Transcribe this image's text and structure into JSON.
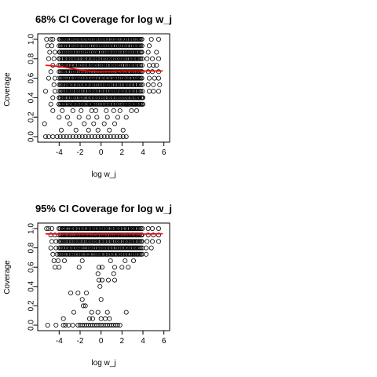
{
  "chart_data": [
    {
      "type": "scatter",
      "title": "68% CI Coverage for log w_j",
      "xlabel": "log w_j",
      "ylabel": "Coverage",
      "xlim": [
        -5.6,
        6.1
      ],
      "ylim": [
        0.0,
        1.0
      ],
      "xticks": [
        -4,
        -2,
        0,
        2,
        4,
        6
      ],
      "yticks": [
        0.0,
        0.2,
        0.4,
        0.6,
        0.8,
        1.0
      ],
      "xtick_labels": [
        "-4",
        "-2",
        "0",
        "2",
        "4",
        "6"
      ],
      "ytick_labels": [
        "0.0",
        "0.2",
        "0.4",
        "0.6",
        "0.8",
        "1.0"
      ],
      "grid": false,
      "point_style": "open-circle",
      "coverage_levels": [
        1.0,
        0.933,
        0.867,
        0.8,
        0.733,
        0.667,
        0.6,
        0.533,
        0.467,
        0.4,
        0.333,
        0.267,
        0.2,
        0.133,
        0.067,
        0.0
      ],
      "dense_band": {
        "y_min": 0.333,
        "y_max": 1.0,
        "x_min": -4.0,
        "x_max": 4.0
      },
      "points": [
        [
          -5.2,
          1.0
        ],
        [
          -4.8,
          1.0
        ],
        [
          -4.6,
          1.0
        ],
        [
          4.8,
          1.0
        ],
        [
          5.5,
          1.0
        ],
        [
          -5.1,
          0.933
        ],
        [
          -4.7,
          0.933
        ],
        [
          4.6,
          0.933
        ],
        [
          -4.9,
          0.867
        ],
        [
          -4.4,
          0.867
        ],
        [
          4.5,
          0.867
        ],
        [
          5.3,
          0.867
        ],
        [
          -5.0,
          0.8
        ],
        [
          -4.5,
          0.8
        ],
        [
          4.4,
          0.8
        ],
        [
          4.9,
          0.8
        ],
        [
          5.5,
          0.8
        ],
        [
          -4.6,
          0.733
        ],
        [
          4.6,
          0.733
        ],
        [
          5.0,
          0.733
        ],
        [
          5.3,
          0.733
        ],
        [
          -4.8,
          0.667
        ],
        [
          4.5,
          0.667
        ],
        [
          4.9,
          0.667
        ],
        [
          5.5,
          0.667
        ],
        [
          -5.0,
          0.6
        ],
        [
          -4.4,
          0.6
        ],
        [
          4.6,
          0.6
        ],
        [
          5.1,
          0.6
        ],
        [
          5.5,
          0.6
        ],
        [
          -4.5,
          0.533
        ],
        [
          4.5,
          0.533
        ],
        [
          5.0,
          0.533
        ],
        [
          5.6,
          0.533
        ],
        [
          -5.3,
          0.467
        ],
        [
          -4.4,
          0.467
        ],
        [
          4.6,
          0.467
        ],
        [
          5.0,
          0.467
        ],
        [
          5.5,
          0.467
        ],
        [
          -4.6,
          0.4
        ],
        [
          -4.0,
          0.4
        ],
        [
          3.6,
          0.4
        ],
        [
          4.0,
          0.4
        ],
        [
          -4.8,
          0.333
        ],
        [
          -4.0,
          0.333
        ],
        [
          -3.6,
          0.333
        ],
        [
          -2.9,
          0.333
        ],
        [
          -2.4,
          0.333
        ],
        [
          -1.8,
          0.333
        ],
        [
          -1.0,
          0.333
        ],
        [
          0.2,
          0.333
        ],
        [
          1.5,
          0.333
        ],
        [
          2.5,
          0.333
        ],
        [
          3.1,
          0.333
        ],
        [
          3.8,
          0.333
        ],
        [
          4.0,
          0.333
        ],
        [
          -4.6,
          0.267
        ],
        [
          -3.7,
          0.267
        ],
        [
          -2.7,
          0.267
        ],
        [
          -1.9,
          0.267
        ],
        [
          -0.9,
          0.267
        ],
        [
          -0.5,
          0.267
        ],
        [
          0.5,
          0.267
        ],
        [
          1.2,
          0.267
        ],
        [
          1.8,
          0.267
        ],
        [
          2.9,
          0.267
        ],
        [
          3.4,
          0.267
        ],
        [
          -4.0,
          0.2
        ],
        [
          -3.2,
          0.2
        ],
        [
          -2.1,
          0.2
        ],
        [
          -1.2,
          0.2
        ],
        [
          -0.4,
          0.2
        ],
        [
          0.6,
          0.2
        ],
        [
          1.6,
          0.2
        ],
        [
          2.4,
          0.2
        ],
        [
          -5.4,
          0.133
        ],
        [
          -3.0,
          0.133
        ],
        [
          -1.6,
          0.133
        ],
        [
          -0.7,
          0.133
        ],
        [
          0.3,
          0.133
        ],
        [
          1.3,
          0.133
        ],
        [
          -3.8,
          0.067
        ],
        [
          -2.4,
          0.067
        ],
        [
          -1.2,
          0.067
        ],
        [
          -0.3,
          0.067
        ],
        [
          0.8,
          0.067
        ],
        [
          2.1,
          0.067
        ],
        [
          -5.3,
          0.0
        ],
        [
          -5.0,
          0.0
        ],
        [
          -4.6,
          0.0
        ],
        [
          -4.2,
          0.0
        ],
        [
          -3.9,
          0.0
        ],
        [
          -3.6,
          0.0
        ],
        [
          -3.3,
          0.0
        ],
        [
          -3.0,
          0.0
        ],
        [
          -2.7,
          0.0
        ],
        [
          -2.4,
          0.0
        ],
        [
          -2.1,
          0.0
        ],
        [
          -1.8,
          0.0
        ],
        [
          -1.5,
          0.0
        ],
        [
          -1.2,
          0.0
        ],
        [
          -0.9,
          0.0
        ],
        [
          -0.6,
          0.0
        ],
        [
          -0.3,
          0.0
        ],
        [
          0.0,
          0.0
        ],
        [
          0.3,
          0.0
        ],
        [
          0.6,
          0.0
        ],
        [
          0.9,
          0.0
        ],
        [
          1.2,
          0.0
        ],
        [
          1.5,
          0.0
        ],
        [
          1.8,
          0.0
        ],
        [
          2.1,
          0.0
        ],
        [
          2.4,
          0.0
        ]
      ],
      "series": [
        {
          "kind": "smooth-line",
          "color": "#ff0000",
          "x": [
            -5.3,
            -4.0,
            -3.0,
            -2.0,
            -1.0,
            0.0,
            1.0,
            2.0,
            3.0,
            4.0,
            5.0,
            5.9
          ],
          "y": [
            0.733,
            0.72,
            0.705,
            0.685,
            0.67,
            0.665,
            0.67,
            0.675,
            0.675,
            0.675,
            0.675,
            0.675
          ]
        }
      ]
    },
    {
      "type": "scatter",
      "title": "95% CI Coverage for  log w_j",
      "xlabel": "log w_j",
      "ylabel": "Coverage",
      "xlim": [
        -5.6,
        6.1
      ],
      "ylim": [
        0.0,
        1.0
      ],
      "xticks": [
        -4,
        -2,
        0,
        2,
        4,
        6
      ],
      "yticks": [
        0.0,
        0.2,
        0.4,
        0.6,
        0.8,
        1.0
      ],
      "xtick_labels": [
        "-4",
        "-2",
        "0",
        "2",
        "4",
        "6"
      ],
      "ytick_labels": [
        "0.0",
        "0.2",
        "0.4",
        "0.6",
        "0.8",
        "1.0"
      ],
      "grid": false,
      "point_style": "open-circle",
      "coverage_levels": [
        1.0,
        0.933,
        0.867,
        0.8,
        0.733,
        0.667,
        0.6,
        0.533,
        0.467,
        0.4,
        0.333,
        0.267,
        0.2,
        0.133,
        0.067,
        0.0
      ],
      "dense_band": {
        "y_min": 0.733,
        "y_max": 1.0,
        "x_min": -4.0,
        "x_max": 4.0
      },
      "points": [
        [
          -5.2,
          1.0
        ],
        [
          -5.0,
          1.0
        ],
        [
          -4.7,
          1.0
        ],
        [
          4.5,
          1.0
        ],
        [
          4.9,
          1.0
        ],
        [
          5.5,
          1.0
        ],
        [
          -4.8,
          0.933
        ],
        [
          -4.4,
          0.933
        ],
        [
          4.5,
          0.933
        ],
        [
          5.0,
          0.933
        ],
        [
          5.5,
          0.933
        ],
        [
          -4.7,
          0.867
        ],
        [
          -4.3,
          0.867
        ],
        [
          4.4,
          0.867
        ],
        [
          4.9,
          0.867
        ],
        [
          5.5,
          0.867
        ],
        [
          -4.8,
          0.8
        ],
        [
          -4.3,
          0.8
        ],
        [
          4.3,
          0.8
        ],
        [
          4.8,
          0.8
        ],
        [
          -4.6,
          0.733
        ],
        [
          -4.2,
          0.733
        ],
        [
          4.3,
          0.733
        ],
        [
          -4.5,
          0.667
        ],
        [
          -4.1,
          0.667
        ],
        [
          -3.5,
          0.667
        ],
        [
          -1.8,
          0.667
        ],
        [
          0.9,
          0.667
        ],
        [
          2.3,
          0.667
        ],
        [
          3.1,
          0.667
        ],
        [
          -4.4,
          0.6
        ],
        [
          -4.0,
          0.6
        ],
        [
          -2.1,
          0.6
        ],
        [
          -0.2,
          0.6
        ],
        [
          0.1,
          0.6
        ],
        [
          1.3,
          0.6
        ],
        [
          2.0,
          0.6
        ],
        [
          2.6,
          0.6
        ],
        [
          -0.3,
          0.533
        ],
        [
          1.2,
          0.533
        ],
        [
          -0.2,
          0.467
        ],
        [
          0.1,
          0.467
        ],
        [
          0.7,
          0.467
        ],
        [
          1.3,
          0.467
        ],
        [
          -0.1,
          0.4
        ],
        [
          -2.9,
          0.333
        ],
        [
          -2.2,
          0.333
        ],
        [
          -1.4,
          0.333
        ],
        [
          -1.8,
          0.267
        ],
        [
          0.0,
          0.267
        ],
        [
          -1.7,
          0.2
        ],
        [
          -1.5,
          0.2
        ],
        [
          -2.6,
          0.133
        ],
        [
          -0.9,
          0.133
        ],
        [
          -0.3,
          0.133
        ],
        [
          0.6,
          0.133
        ],
        [
          2.4,
          0.133
        ],
        [
          -3.6,
          0.067
        ],
        [
          -1.1,
          0.067
        ],
        [
          -0.8,
          0.067
        ],
        [
          0.0,
          0.067
        ],
        [
          0.4,
          0.067
        ],
        [
          0.8,
          0.067
        ],
        [
          -5.1,
          0.0
        ],
        [
          -4.3,
          0.0
        ],
        [
          -3.6,
          0.0
        ],
        [
          -3.4,
          0.0
        ],
        [
          -3.1,
          0.0
        ],
        [
          -2.7,
          0.0
        ],
        [
          -2.2,
          0.0
        ],
        [
          -2.0,
          0.0
        ],
        [
          -1.8,
          0.0
        ],
        [
          -1.6,
          0.0
        ],
        [
          -1.4,
          0.0
        ],
        [
          -1.2,
          0.0
        ],
        [
          -1.0,
          0.0
        ],
        [
          -0.8,
          0.0
        ],
        [
          -0.6,
          0.0
        ],
        [
          -0.4,
          0.0
        ],
        [
          -0.2,
          0.0
        ],
        [
          0.0,
          0.0
        ],
        [
          0.2,
          0.0
        ],
        [
          0.4,
          0.0
        ],
        [
          0.6,
          0.0
        ],
        [
          0.8,
          0.0
        ],
        [
          1.0,
          0.0
        ],
        [
          1.2,
          0.0
        ],
        [
          1.4,
          0.0
        ],
        [
          1.6,
          0.0
        ],
        [
          1.8,
          0.0
        ]
      ],
      "series": [
        {
          "kind": "smooth-line",
          "color": "#ff0000",
          "x": [
            -5.3,
            -4.0,
            -3.0,
            -2.0,
            -1.0,
            0.0,
            1.0,
            2.0,
            3.0,
            4.0,
            5.0,
            5.9
          ],
          "y": [
            0.945,
            0.944,
            0.943,
            0.942,
            0.942,
            0.942,
            0.943,
            0.943,
            0.944,
            0.944,
            0.945,
            0.946
          ]
        }
      ]
    }
  ]
}
